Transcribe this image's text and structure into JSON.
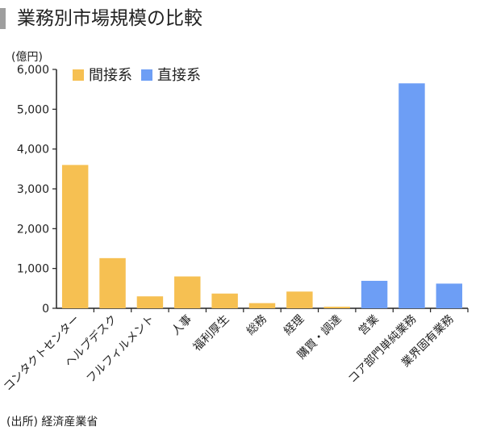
{
  "title": "業務別市場規模の比較",
  "unit_label": "(億円)",
  "source_note": "(出所) 経済産業省",
  "colors": {
    "間接系": "#f6c052",
    "直接系": "#6d9ef5",
    "axis": "#222222",
    "title_bar": "#9e9e9e"
  },
  "chart_data": {
    "type": "bar",
    "title": "業務別市場規模の比較",
    "ylabel": "(億円)",
    "xlabel": "",
    "ylim": [
      0,
      6000
    ],
    "yticks": [
      0,
      1000,
      2000,
      3000,
      4000,
      5000,
      6000
    ],
    "ytick_labels": [
      "0",
      "1,000",
      "2,000",
      "3,000",
      "4,000",
      "5,000",
      "6,000"
    ],
    "grid": false,
    "legend_position": "top-left",
    "legend": [
      "間接系",
      "直接系"
    ],
    "categories": [
      "コンタクトセンター",
      "ヘルプデスク",
      "フルフィルメント",
      "人事",
      "福利厚生",
      "総務",
      "経理",
      "購買・調達",
      "営業",
      "コア部門単純業務",
      "業界固有業務"
    ],
    "values": [
      3600,
      1260,
      300,
      800,
      370,
      130,
      420,
      40,
      690,
      5650,
      620
    ],
    "groups": [
      "間接系",
      "間接系",
      "間接系",
      "間接系",
      "間接系",
      "間接系",
      "間接系",
      "間接系",
      "直接系",
      "直接系",
      "直接系"
    ]
  }
}
